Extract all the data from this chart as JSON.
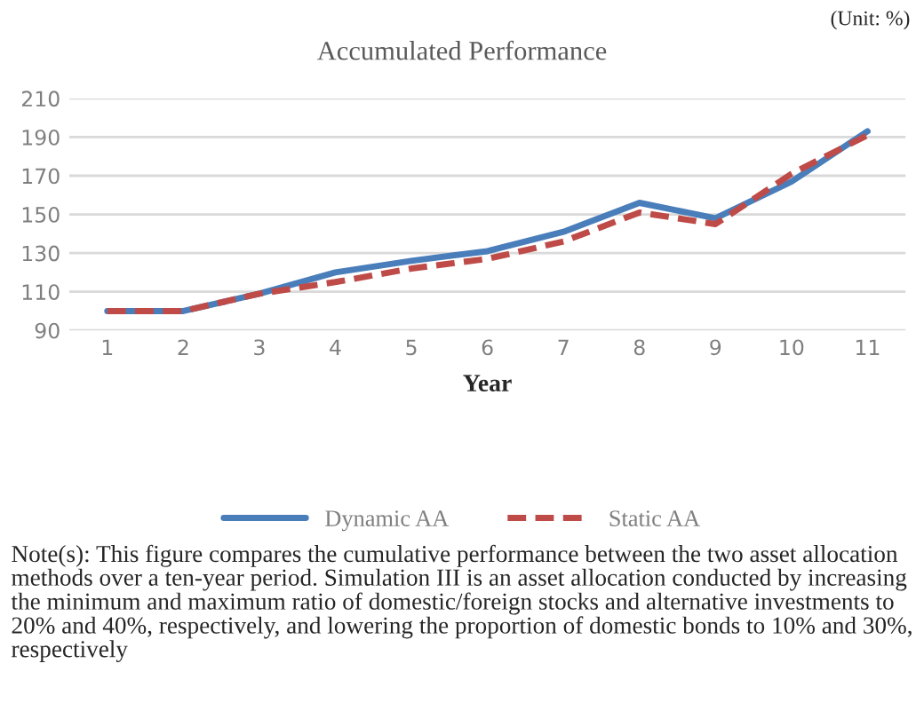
{
  "chart_data": {
    "type": "line",
    "title": "Accumulated Performance",
    "xlabel": "Year",
    "categories": [
      "1",
      "2",
      "3",
      "4",
      "5",
      "6",
      "7",
      "8",
      "9",
      "10",
      "11"
    ],
    "series": [
      {
        "name": "Dynamic AA",
        "color": "#4a7ebb",
        "line_style": "solid",
        "values": [
          100,
          100,
          109,
          120,
          126,
          131,
          141,
          156,
          148,
          167,
          193
        ]
      },
      {
        "name": "Static AA",
        "color": "#be4b48",
        "line_style": "dashed",
        "values": [
          100,
          100,
          109,
          115,
          122,
          127,
          136,
          151,
          145,
          171,
          191
        ]
      }
    ],
    "ylim": [
      90,
      210
    ],
    "yticks": [
      90,
      110,
      130,
      150,
      170,
      190,
      210
    ],
    "grid": "y",
    "legend": "bottom",
    "marker": "none",
    "annotations": [
      "(Unit: %)",
      "Note(s): This figure compares the cumulative performance between the two asset allocation methods over a ten-year period. Simulation III is an asset allocation conducted by increasing the minimum and maximum ratio of domestic/foreign stocks and alternative investments to 20% and 40%, respectively, and lowering the proportion of domestic bonds to 10% and 30%, respectively"
    ]
  }
}
